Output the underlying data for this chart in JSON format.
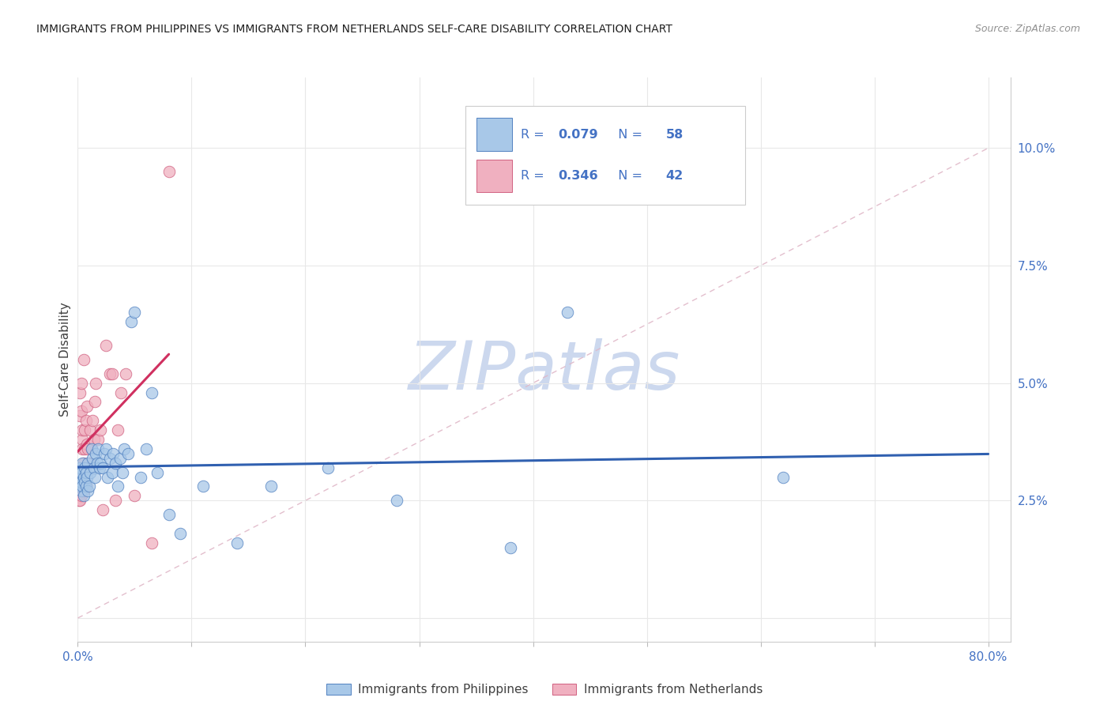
{
  "title": "IMMIGRANTS FROM PHILIPPINES VS IMMIGRANTS FROM NETHERLANDS SELF-CARE DISABILITY CORRELATION CHART",
  "source": "Source: ZipAtlas.com",
  "ylabel": "Self-Care Disability",
  "xlim": [
    0.0,
    0.82
  ],
  "ylim": [
    -0.005,
    0.115
  ],
  "philippines_R": "0.079",
  "philippines_N": "58",
  "netherlands_R": "0.346",
  "netherlands_N": "42",
  "philippines_x": [
    0.001,
    0.001,
    0.002,
    0.002,
    0.003,
    0.003,
    0.003,
    0.004,
    0.004,
    0.005,
    0.005,
    0.006,
    0.006,
    0.007,
    0.007,
    0.008,
    0.009,
    0.009,
    0.01,
    0.011,
    0.012,
    0.013,
    0.014,
    0.015,
    0.016,
    0.017,
    0.018,
    0.019,
    0.02,
    0.022,
    0.023,
    0.025,
    0.026,
    0.028,
    0.03,
    0.031,
    0.033,
    0.035,
    0.037,
    0.039,
    0.041,
    0.044,
    0.047,
    0.05,
    0.055,
    0.06,
    0.065,
    0.07,
    0.08,
    0.09,
    0.11,
    0.14,
    0.17,
    0.22,
    0.28,
    0.38,
    0.43,
    0.62
  ],
  "philippines_y": [
    0.03,
    0.028,
    0.032,
    0.029,
    0.027,
    0.031,
    0.029,
    0.028,
    0.033,
    0.026,
    0.03,
    0.029,
    0.032,
    0.031,
    0.028,
    0.03,
    0.033,
    0.027,
    0.028,
    0.031,
    0.036,
    0.034,
    0.032,
    0.03,
    0.035,
    0.033,
    0.036,
    0.032,
    0.033,
    0.032,
    0.035,
    0.036,
    0.03,
    0.034,
    0.031,
    0.035,
    0.033,
    0.028,
    0.034,
    0.031,
    0.036,
    0.035,
    0.063,
    0.065,
    0.03,
    0.036,
    0.048,
    0.031,
    0.022,
    0.018,
    0.028,
    0.016,
    0.028,
    0.032,
    0.025,
    0.015,
    0.065,
    0.03
  ],
  "netherlands_x": [
    0.001,
    0.001,
    0.001,
    0.002,
    0.002,
    0.002,
    0.003,
    0.003,
    0.003,
    0.004,
    0.004,
    0.004,
    0.005,
    0.005,
    0.005,
    0.006,
    0.006,
    0.007,
    0.007,
    0.008,
    0.008,
    0.009,
    0.01,
    0.011,
    0.012,
    0.013,
    0.014,
    0.015,
    0.016,
    0.018,
    0.02,
    0.022,
    0.025,
    0.028,
    0.03,
    0.033,
    0.035,
    0.038,
    0.042,
    0.05,
    0.065,
    0.08
  ],
  "netherlands_y": [
    0.028,
    0.03,
    0.025,
    0.048,
    0.043,
    0.025,
    0.05,
    0.044,
    0.026,
    0.038,
    0.036,
    0.04,
    0.033,
    0.055,
    0.027,
    0.036,
    0.04,
    0.042,
    0.028,
    0.037,
    0.045,
    0.036,
    0.033,
    0.04,
    0.036,
    0.042,
    0.038,
    0.046,
    0.05,
    0.038,
    0.04,
    0.023,
    0.058,
    0.052,
    0.052,
    0.025,
    0.04,
    0.048,
    0.052,
    0.026,
    0.016,
    0.095
  ],
  "blue_dot_face": "#a8c8e8",
  "blue_dot_edge": "#5080c0",
  "pink_dot_face": "#f0b0c0",
  "pink_dot_edge": "#d06080",
  "blue_line_color": "#3060b0",
  "pink_line_color": "#d03060",
  "dashed_line_color": "#e0b8c8",
  "background_color": "#ffffff",
  "grid_color": "#e8e8e8",
  "title_color": "#202020",
  "source_color": "#909090",
  "axis_tick_color": "#4472c4",
  "ylabel_color": "#404040",
  "legend_text_color": "#4472c4",
  "watermark_color": "#ccd8ee"
}
